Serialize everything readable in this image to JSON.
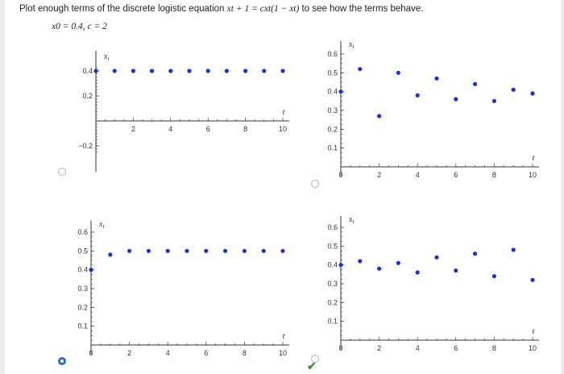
{
  "question": {
    "prefix": "Plot enough terms of the discrete logistic equation",
    "equation": "x_{t+1} = cx_t(1 − x_t)",
    "equation_display": "xt + 1 = cxt(1 − xt)",
    "suffix": "to see how the terms behave.",
    "params": "x0 = 0.4,  c = 2"
  },
  "answer_options": [
    {
      "id": "A",
      "selected": false,
      "correct": false
    },
    {
      "id": "B",
      "selected": false,
      "correct": false
    },
    {
      "id": "C",
      "selected": true,
      "correct": false
    },
    {
      "id": "D",
      "selected": false,
      "correct": true
    }
  ],
  "colors": {
    "point": "#1f2fd0",
    "axis": "#333333",
    "radio_selected": "#2a6fd1",
    "check": "#2e9e3e"
  },
  "chart_data": [
    {
      "type": "scatter",
      "xlabel": "t",
      "ylabel": "x_t",
      "xlim": [
        0,
        10
      ],
      "ylim": [
        -0.2,
        0.4
      ],
      "xticks": [
        "2",
        "4",
        "6",
        "8",
        "10"
      ],
      "yticks": [
        "0.4",
        "0.2",
        "-0.2"
      ],
      "x": [
        0,
        1,
        2,
        3,
        4,
        5,
        6,
        7,
        8,
        9,
        10
      ],
      "values": [
        0.4,
        0.4,
        0.4,
        0.4,
        0.4,
        0.4,
        0.4,
        0.4,
        0.4,
        0.4,
        0.4
      ]
    },
    {
      "type": "scatter",
      "xlabel": "t",
      "ylabel": "x_t",
      "xlim": [
        0,
        10
      ],
      "ylim": [
        0,
        0.6
      ],
      "xticks": [
        "0",
        "2",
        "4",
        "6",
        "8",
        "10"
      ],
      "yticks": [
        "0.6",
        "0.5",
        "0.4",
        "0.3",
        "0.2",
        "0.1"
      ],
      "x": [
        0,
        1,
        2,
        3,
        4,
        5,
        6,
        7,
        8,
        9,
        10
      ],
      "values": [
        0.4,
        0.52,
        0.27,
        0.5,
        0.38,
        0.47,
        0.36,
        0.44,
        0.35,
        0.41,
        0.39
      ]
    },
    {
      "type": "scatter",
      "xlabel": "t",
      "ylabel": "x_t",
      "xlim": [
        0,
        10
      ],
      "ylim": [
        0,
        0.6
      ],
      "xticks": [
        "0",
        "2",
        "4",
        "6",
        "8",
        "10"
      ],
      "yticks": [
        "0.6",
        "0.5",
        "0.4",
        "0.3",
        "0.2",
        "0.1"
      ],
      "x": [
        0,
        1,
        2,
        3,
        4,
        5,
        6,
        7,
        8,
        9,
        10
      ],
      "values": [
        0.4,
        0.48,
        0.5,
        0.5,
        0.5,
        0.5,
        0.5,
        0.5,
        0.5,
        0.5,
        0.5
      ]
    },
    {
      "type": "scatter",
      "xlabel": "t",
      "ylabel": "x_t",
      "xlim": [
        0,
        10
      ],
      "ylim": [
        0,
        0.6
      ],
      "xticks": [
        "0",
        "2",
        "4",
        "6",
        "8",
        "10"
      ],
      "yticks": [
        "0.6",
        "0.5",
        "0.4",
        "0.3",
        "0.2",
        "0.1"
      ],
      "x": [
        0,
        1,
        2,
        3,
        4,
        5,
        6,
        7,
        8,
        9,
        10
      ],
      "values": [
        0.4,
        0.42,
        0.38,
        0.41,
        0.36,
        0.44,
        0.37,
        0.46,
        0.34,
        0.48,
        0.32
      ]
    }
  ]
}
